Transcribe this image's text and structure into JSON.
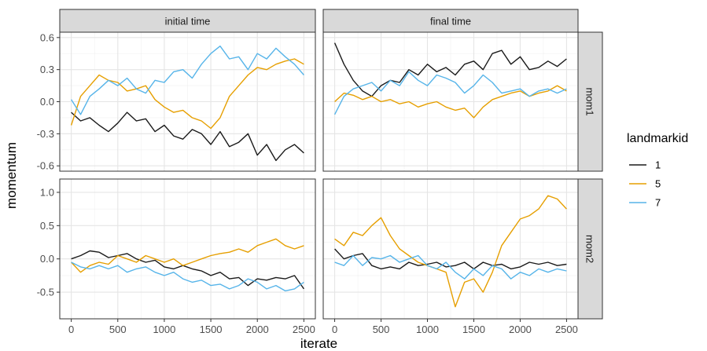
{
  "chart_data": {
    "type": "line",
    "xlabel": "iterate",
    "ylabel": "momentum",
    "column_strips": [
      "initial time",
      "final time"
    ],
    "row_strips": [
      "mom1",
      "mom2"
    ],
    "xlim": [
      0,
      2500
    ],
    "x_ticks": [
      0,
      500,
      1000,
      1500,
      2000,
      2500
    ],
    "rows": [
      {
        "strip": "mom1",
        "ylim": [
          -0.65,
          0.65
        ],
        "y_ticks": [
          -0.6,
          -0.3,
          0.0,
          0.3,
          0.6
        ],
        "y_tick_labels": [
          "-0.6",
          "-0.3",
          "0.0",
          "0.3",
          "0.6"
        ]
      },
      {
        "strip": "mom2",
        "ylim": [
          -0.9,
          1.2
        ],
        "y_ticks": [
          -0.5,
          0.0,
          0.5,
          1.0
        ],
        "y_tick_labels": [
          "-0.5",
          "0.0",
          "0.5",
          "1.0"
        ]
      }
    ],
    "legend": {
      "title": "landmarkid",
      "position": "right",
      "entries": [
        {
          "label": "1",
          "color": "#1a1a1a"
        },
        {
          "label": "5",
          "color": "#E69F00"
        },
        {
          "label": "7",
          "color": "#56B4E9"
        }
      ]
    },
    "grid": true,
    "panels": [
      {
        "col": "initial time",
        "row": "mom1",
        "series": [
          {
            "name": "1",
            "x": [
              0,
              100,
              200,
              300,
              400,
              500,
              600,
              700,
              800,
              900,
              1000,
              1100,
              1200,
              1300,
              1400,
              1500,
              1600,
              1700,
              1800,
              1900,
              2000,
              2100,
              2200,
              2300,
              2400,
              2500
            ],
            "y": [
              -0.1,
              -0.18,
              -0.15,
              -0.22,
              -0.28,
              -0.2,
              -0.1,
              -0.18,
              -0.16,
              -0.28,
              -0.22,
              -0.32,
              -0.35,
              -0.26,
              -0.3,
              -0.4,
              -0.28,
              -0.42,
              -0.38,
              -0.3,
              -0.5,
              -0.4,
              -0.55,
              -0.45,
              -0.4,
              -0.48
            ]
          },
          {
            "name": "5",
            "x": [
              0,
              100,
              200,
              300,
              400,
              500,
              600,
              700,
              800,
              900,
              1000,
              1100,
              1200,
              1300,
              1400,
              1500,
              1600,
              1700,
              1800,
              1900,
              2000,
              2100,
              2200,
              2300,
              2400,
              2500
            ],
            "y": [
              -0.22,
              0.05,
              0.15,
              0.25,
              0.2,
              0.18,
              0.1,
              0.12,
              0.15,
              0.02,
              -0.05,
              -0.1,
              -0.08,
              -0.15,
              -0.18,
              -0.25,
              -0.15,
              0.05,
              0.15,
              0.25,
              0.32,
              0.3,
              0.35,
              0.38,
              0.4,
              0.35
            ]
          },
          {
            "name": "7",
            "x": [
              0,
              100,
              200,
              300,
              400,
              500,
              600,
              700,
              800,
              900,
              1000,
              1100,
              1200,
              1300,
              1400,
              1500,
              1600,
              1700,
              1800,
              1900,
              2000,
              2100,
              2200,
              2300,
              2400,
              2500
            ],
            "y": [
              0.02,
              -0.12,
              0.05,
              0.12,
              0.2,
              0.15,
              0.22,
              0.12,
              0.08,
              0.2,
              0.18,
              0.28,
              0.3,
              0.22,
              0.35,
              0.45,
              0.52,
              0.4,
              0.42,
              0.3,
              0.45,
              0.4,
              0.5,
              0.42,
              0.35,
              0.25
            ]
          }
        ]
      },
      {
        "col": "final time",
        "row": "mom1",
        "series": [
          {
            "name": "1",
            "x": [
              0,
              100,
              200,
              300,
              400,
              500,
              600,
              700,
              800,
              900,
              1000,
              1100,
              1200,
              1300,
              1400,
              1500,
              1600,
              1700,
              1800,
              1900,
              2000,
              2100,
              2200,
              2300,
              2400,
              2500
            ],
            "y": [
              0.55,
              0.35,
              0.2,
              0.1,
              0.05,
              0.15,
              0.2,
              0.18,
              0.3,
              0.25,
              0.35,
              0.28,
              0.32,
              0.25,
              0.35,
              0.38,
              0.3,
              0.45,
              0.48,
              0.35,
              0.42,
              0.3,
              0.32,
              0.38,
              0.33,
              0.4
            ]
          },
          {
            "name": "5",
            "x": [
              0,
              100,
              200,
              300,
              400,
              500,
              600,
              700,
              800,
              900,
              1000,
              1100,
              1200,
              1300,
              1400,
              1500,
              1600,
              1700,
              1800,
              1900,
              2000,
              2100,
              2200,
              2300,
              2400,
              2500
            ],
            "y": [
              0.0,
              0.08,
              0.06,
              0.02,
              0.05,
              0.0,
              0.02,
              -0.02,
              0.0,
              -0.05,
              -0.02,
              0.0,
              -0.05,
              -0.08,
              -0.06,
              -0.15,
              -0.05,
              0.02,
              0.05,
              0.08,
              0.1,
              0.05,
              0.08,
              0.1,
              0.15,
              0.1
            ]
          },
          {
            "name": "7",
            "x": [
              0,
              100,
              200,
              300,
              400,
              500,
              600,
              700,
              800,
              900,
              1000,
              1100,
              1200,
              1300,
              1400,
              1500,
              1600,
              1700,
              1800,
              1900,
              2000,
              2100,
              2200,
              2300,
              2400,
              2500
            ],
            "y": [
              -0.12,
              0.05,
              0.12,
              0.15,
              0.18,
              0.1,
              0.2,
              0.15,
              0.28,
              0.2,
              0.15,
              0.25,
              0.22,
              0.18,
              0.08,
              0.15,
              0.25,
              0.18,
              0.08,
              0.1,
              0.12,
              0.05,
              0.1,
              0.12,
              0.08,
              0.12
            ]
          }
        ]
      },
      {
        "col": "initial time",
        "row": "mom2",
        "series": [
          {
            "name": "1",
            "x": [
              0,
              100,
              200,
              300,
              400,
              500,
              600,
              700,
              800,
              900,
              1000,
              1100,
              1200,
              1300,
              1400,
              1500,
              1600,
              1700,
              1800,
              1900,
              2000,
              2100,
              2200,
              2300,
              2400,
              2500
            ],
            "y": [
              0.0,
              0.05,
              0.12,
              0.1,
              0.02,
              0.05,
              0.08,
              0.0,
              -0.05,
              -0.02,
              -0.12,
              -0.15,
              -0.1,
              -0.15,
              -0.18,
              -0.25,
              -0.2,
              -0.3,
              -0.28,
              -0.4,
              -0.3,
              -0.32,
              -0.28,
              -0.3,
              -0.25,
              -0.45
            ]
          },
          {
            "name": "5",
            "x": [
              0,
              100,
              200,
              300,
              400,
              500,
              600,
              700,
              800,
              900,
              1000,
              1100,
              1200,
              1300,
              1400,
              1500,
              1600,
              1700,
              1800,
              1900,
              2000,
              2100,
              2200,
              2300,
              2400,
              2500
            ],
            "y": [
              -0.05,
              -0.2,
              -0.1,
              -0.05,
              -0.08,
              0.05,
              0.0,
              -0.05,
              0.05,
              0.0,
              -0.05,
              0.0,
              -0.1,
              -0.05,
              0.0,
              0.05,
              0.08,
              0.1,
              0.15,
              0.1,
              0.2,
              0.25,
              0.3,
              0.2,
              0.15,
              0.2
            ]
          },
          {
            "name": "7",
            "x": [
              0,
              100,
              200,
              300,
              400,
              500,
              600,
              700,
              800,
              900,
              1000,
              1100,
              1200,
              1300,
              1400,
              1500,
              1600,
              1700,
              1800,
              1900,
              2000,
              2100,
              2200,
              2300,
              2400,
              2500
            ],
            "y": [
              -0.05,
              -0.12,
              -0.15,
              -0.1,
              -0.15,
              -0.1,
              -0.2,
              -0.15,
              -0.12,
              -0.2,
              -0.25,
              -0.2,
              -0.3,
              -0.35,
              -0.32,
              -0.4,
              -0.38,
              -0.45,
              -0.4,
              -0.3,
              -0.35,
              -0.45,
              -0.4,
              -0.48,
              -0.45,
              -0.35
            ]
          }
        ]
      },
      {
        "col": "final time",
        "row": "mom2",
        "series": [
          {
            "name": "1",
            "x": [
              0,
              100,
              200,
              300,
              400,
              500,
              600,
              700,
              800,
              900,
              1000,
              1100,
              1200,
              1300,
              1400,
              1500,
              1600,
              1700,
              1800,
              1900,
              2000,
              2100,
              2200,
              2300,
              2400,
              2500
            ],
            "y": [
              0.15,
              0.0,
              0.05,
              0.08,
              -0.1,
              -0.15,
              -0.12,
              -0.15,
              -0.05,
              -0.1,
              -0.08,
              -0.05,
              -0.12,
              -0.1,
              -0.05,
              -0.15,
              -0.05,
              -0.1,
              -0.08,
              -0.15,
              -0.12,
              -0.05,
              -0.08,
              -0.05,
              -0.1,
              -0.08
            ]
          },
          {
            "name": "5",
            "x": [
              0,
              100,
              200,
              300,
              400,
              500,
              600,
              700,
              800,
              900,
              1000,
              1100,
              1200,
              1300,
              1400,
              1500,
              1600,
              1700,
              1800,
              1900,
              2000,
              2100,
              2200,
              2300,
              2400,
              2500
            ],
            "y": [
              0.3,
              0.2,
              0.4,
              0.35,
              0.5,
              0.62,
              0.35,
              0.15,
              0.05,
              -0.05,
              -0.1,
              -0.15,
              -0.2,
              -0.72,
              -0.35,
              -0.3,
              -0.5,
              -0.2,
              0.2,
              0.4,
              0.6,
              0.65,
              0.75,
              0.95,
              0.9,
              0.75
            ]
          },
          {
            "name": "7",
            "x": [
              0,
              100,
              200,
              300,
              400,
              500,
              600,
              700,
              800,
              900,
              1000,
              1100,
              1200,
              1300,
              1400,
              1500,
              1600,
              1700,
              1800,
              1900,
              2000,
              2100,
              2200,
              2300,
              2400,
              2500
            ],
            "y": [
              -0.05,
              -0.1,
              0.05,
              -0.1,
              0.02,
              0.0,
              0.05,
              -0.05,
              0.0,
              0.05,
              -0.1,
              -0.15,
              -0.05,
              -0.2,
              -0.3,
              -0.15,
              -0.25,
              -0.1,
              -0.15,
              -0.3,
              -0.2,
              -0.25,
              -0.15,
              -0.2,
              -0.15,
              -0.18
            ]
          }
        ]
      }
    ]
  }
}
